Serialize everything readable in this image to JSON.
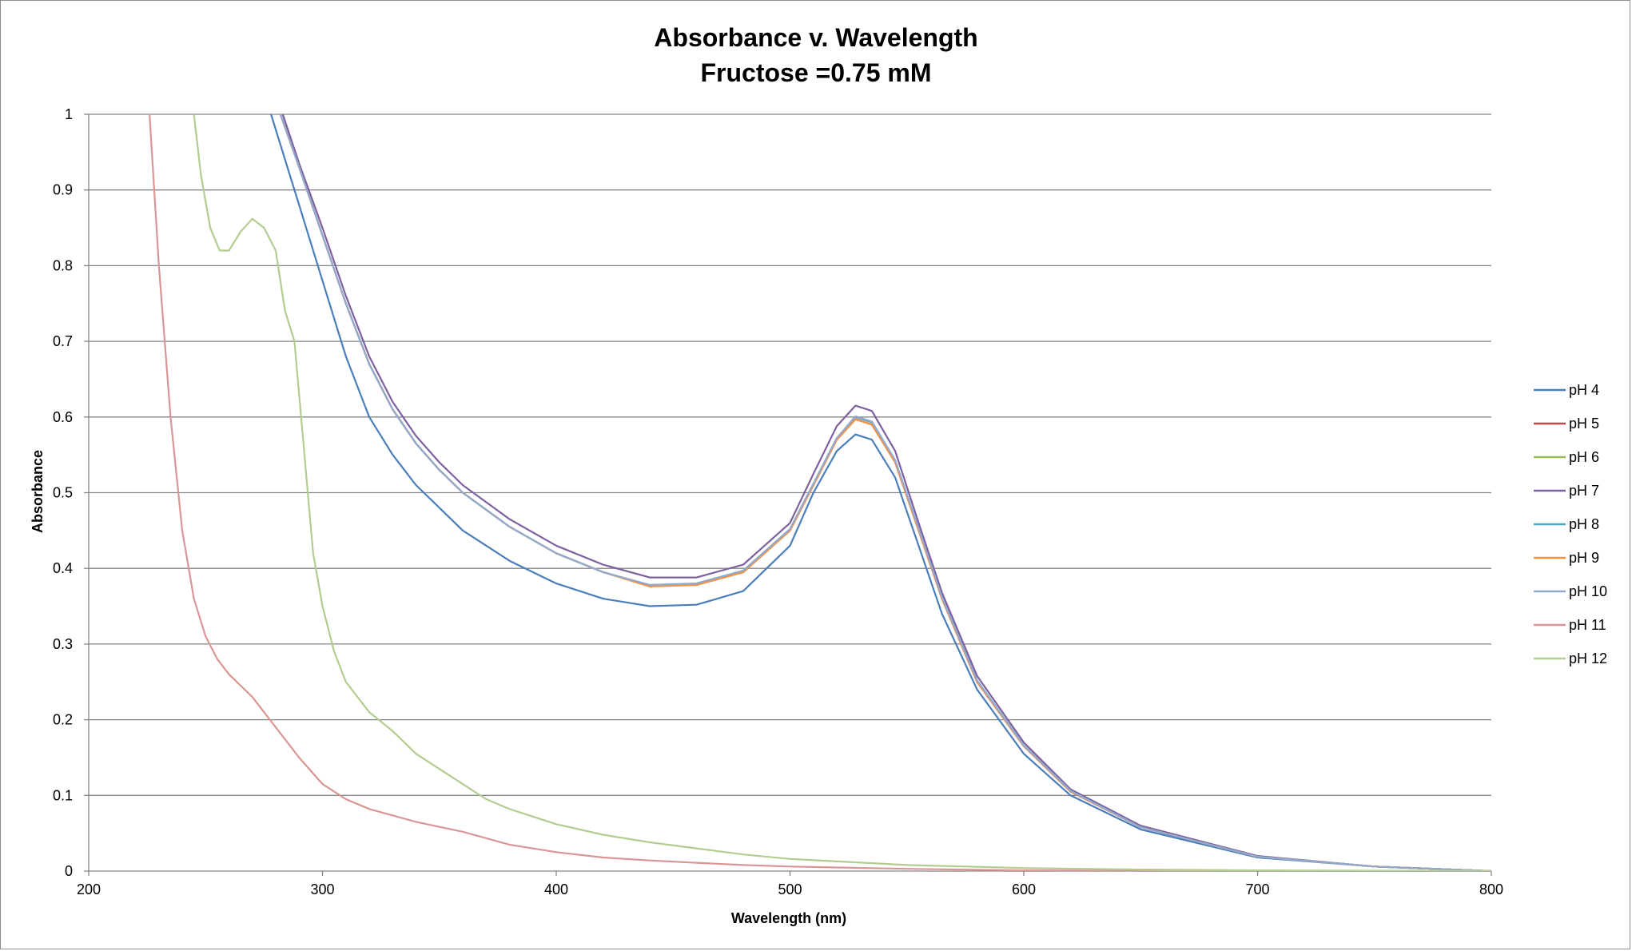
{
  "chart_data": {
    "type": "line",
    "title": "Absorbance v. Wavelength",
    "subtitle": "Fructose =0.75 mM",
    "xlabel": "Wavelength (nm)",
    "ylabel": "Absorbance",
    "xlim": [
      200,
      800
    ],
    "ylim": [
      0,
      1
    ],
    "xticks": [
      "200",
      "300",
      "400",
      "500",
      "600",
      "700",
      "800"
    ],
    "yticks": [
      "0",
      "0.1",
      "0.2",
      "0.3",
      "0.4",
      "0.5",
      "0.6",
      "0.7",
      "0.8",
      "0.9",
      "1"
    ],
    "grid": "horizontal",
    "legend_position": "right",
    "series": [
      {
        "name": "pH 4",
        "color": "#4a7ebb",
        "points": [
          [
            278,
            1.0
          ],
          [
            290,
            0.88
          ],
          [
            300,
            0.78
          ],
          [
            310,
            0.68
          ],
          [
            320,
            0.6
          ],
          [
            330,
            0.55
          ],
          [
            340,
            0.51
          ],
          [
            350,
            0.48
          ],
          [
            360,
            0.45
          ],
          [
            380,
            0.41
          ],
          [
            400,
            0.38
          ],
          [
            420,
            0.36
          ],
          [
            440,
            0.35
          ],
          [
            460,
            0.352
          ],
          [
            480,
            0.37
          ],
          [
            500,
            0.43
          ],
          [
            510,
            0.5
          ],
          [
            520,
            0.555
          ],
          [
            528,
            0.577
          ],
          [
            535,
            0.57
          ],
          [
            545,
            0.52
          ],
          [
            555,
            0.43
          ],
          [
            565,
            0.34
          ],
          [
            580,
            0.24
          ],
          [
            600,
            0.155
          ],
          [
            620,
            0.1
          ],
          [
            650,
            0.055
          ],
          [
            700,
            0.018
          ],
          [
            750,
            0.006
          ],
          [
            800,
            0.0
          ]
        ]
      },
      {
        "name": "pH 5",
        "color": "#be4b48",
        "points": [
          [
            282,
            1.0
          ],
          [
            290,
            0.93
          ],
          [
            300,
            0.84
          ],
          [
            310,
            0.75
          ],
          [
            320,
            0.67
          ],
          [
            330,
            0.61
          ],
          [
            340,
            0.565
          ],
          [
            350,
            0.53
          ],
          [
            360,
            0.5
          ],
          [
            380,
            0.455
          ],
          [
            400,
            0.42
          ],
          [
            420,
            0.395
          ],
          [
            440,
            0.378
          ],
          [
            460,
            0.378
          ],
          [
            480,
            0.395
          ],
          [
            500,
            0.45
          ],
          [
            510,
            0.51
          ],
          [
            520,
            0.57
          ],
          [
            528,
            0.597
          ],
          [
            535,
            0.59
          ],
          [
            545,
            0.54
          ],
          [
            555,
            0.45
          ],
          [
            565,
            0.36
          ],
          [
            580,
            0.25
          ],
          [
            600,
            0.165
          ],
          [
            620,
            0.105
          ],
          [
            650,
            0.058
          ],
          [
            700,
            0.019
          ],
          [
            750,
            0.006
          ],
          [
            800,
            0.0
          ]
        ]
      },
      {
        "name": "pH 6",
        "color": "#98b954",
        "points": [
          [
            282,
            1.0
          ],
          [
            290,
            0.93
          ],
          [
            300,
            0.84
          ],
          [
            310,
            0.75
          ],
          [
            320,
            0.67
          ],
          [
            330,
            0.61
          ],
          [
            340,
            0.565
          ],
          [
            350,
            0.53
          ],
          [
            360,
            0.5
          ],
          [
            380,
            0.455
          ],
          [
            400,
            0.42
          ],
          [
            420,
            0.395
          ],
          [
            440,
            0.378
          ],
          [
            460,
            0.38
          ],
          [
            480,
            0.397
          ],
          [
            500,
            0.452
          ],
          [
            510,
            0.512
          ],
          [
            520,
            0.572
          ],
          [
            528,
            0.6
          ],
          [
            535,
            0.593
          ],
          [
            545,
            0.542
          ],
          [
            555,
            0.452
          ],
          [
            565,
            0.362
          ],
          [
            580,
            0.252
          ],
          [
            600,
            0.166
          ],
          [
            620,
            0.106
          ],
          [
            650,
            0.058
          ],
          [
            700,
            0.019
          ],
          [
            750,
            0.006
          ],
          [
            800,
            0.0
          ]
        ]
      },
      {
        "name": "pH 7",
        "color": "#7d60a0",
        "points": [
          [
            283,
            1.0
          ],
          [
            290,
            0.935
          ],
          [
            300,
            0.85
          ],
          [
            310,
            0.76
          ],
          [
            320,
            0.68
          ],
          [
            330,
            0.62
          ],
          [
            340,
            0.575
          ],
          [
            350,
            0.54
          ],
          [
            360,
            0.51
          ],
          [
            380,
            0.465
          ],
          [
            400,
            0.43
          ],
          [
            420,
            0.405
          ],
          [
            440,
            0.388
          ],
          [
            460,
            0.388
          ],
          [
            480,
            0.405
          ],
          [
            500,
            0.46
          ],
          [
            510,
            0.525
          ],
          [
            520,
            0.588
          ],
          [
            528,
            0.615
          ],
          [
            535,
            0.608
          ],
          [
            545,
            0.555
          ],
          [
            555,
            0.46
          ],
          [
            565,
            0.368
          ],
          [
            580,
            0.258
          ],
          [
            600,
            0.17
          ],
          [
            620,
            0.108
          ],
          [
            650,
            0.06
          ],
          [
            700,
            0.02
          ],
          [
            750,
            0.006
          ],
          [
            800,
            0.0
          ]
        ]
      },
      {
        "name": "pH 8",
        "color": "#46aac4",
        "points": [
          [
            282,
            1.0
          ],
          [
            290,
            0.93
          ],
          [
            300,
            0.84
          ],
          [
            310,
            0.75
          ],
          [
            320,
            0.67
          ],
          [
            330,
            0.61
          ],
          [
            340,
            0.565
          ],
          [
            350,
            0.53
          ],
          [
            360,
            0.5
          ],
          [
            380,
            0.455
          ],
          [
            400,
            0.42
          ],
          [
            420,
            0.395
          ],
          [
            440,
            0.377
          ],
          [
            460,
            0.379
          ],
          [
            480,
            0.396
          ],
          [
            500,
            0.451
          ],
          [
            510,
            0.511
          ],
          [
            520,
            0.571
          ],
          [
            528,
            0.6
          ],
          [
            535,
            0.593
          ],
          [
            545,
            0.542
          ],
          [
            555,
            0.452
          ],
          [
            565,
            0.362
          ],
          [
            580,
            0.252
          ],
          [
            600,
            0.166
          ],
          [
            620,
            0.106
          ],
          [
            650,
            0.058
          ],
          [
            700,
            0.019
          ],
          [
            750,
            0.006
          ],
          [
            800,
            0.0
          ]
        ]
      },
      {
        "name": "pH 9",
        "color": "#f69240",
        "points": [
          [
            282,
            1.0
          ],
          [
            290,
            0.93
          ],
          [
            300,
            0.84
          ],
          [
            310,
            0.75
          ],
          [
            320,
            0.67
          ],
          [
            330,
            0.61
          ],
          [
            340,
            0.565
          ],
          [
            350,
            0.53
          ],
          [
            360,
            0.5
          ],
          [
            380,
            0.455
          ],
          [
            400,
            0.42
          ],
          [
            420,
            0.395
          ],
          [
            440,
            0.376
          ],
          [
            460,
            0.378
          ],
          [
            480,
            0.395
          ],
          [
            500,
            0.45
          ],
          [
            510,
            0.51
          ],
          [
            520,
            0.57
          ],
          [
            528,
            0.597
          ],
          [
            535,
            0.59
          ],
          [
            545,
            0.54
          ],
          [
            555,
            0.45
          ],
          [
            565,
            0.36
          ],
          [
            580,
            0.25
          ],
          [
            600,
            0.165
          ],
          [
            620,
            0.105
          ],
          [
            650,
            0.058
          ],
          [
            700,
            0.019
          ],
          [
            750,
            0.006
          ],
          [
            800,
            0.0
          ]
        ]
      },
      {
        "name": "pH 10",
        "color": "#92a9cf",
        "points": [
          [
            282,
            1.0
          ],
          [
            290,
            0.93
          ],
          [
            300,
            0.84
          ],
          [
            310,
            0.75
          ],
          [
            320,
            0.67
          ],
          [
            330,
            0.61
          ],
          [
            340,
            0.565
          ],
          [
            350,
            0.53
          ],
          [
            360,
            0.5
          ],
          [
            380,
            0.455
          ],
          [
            400,
            0.42
          ],
          [
            420,
            0.395
          ],
          [
            440,
            0.378
          ],
          [
            460,
            0.38
          ],
          [
            480,
            0.397
          ],
          [
            500,
            0.452
          ],
          [
            510,
            0.512
          ],
          [
            520,
            0.572
          ],
          [
            528,
            0.601
          ],
          [
            535,
            0.594
          ],
          [
            545,
            0.543
          ],
          [
            555,
            0.453
          ],
          [
            565,
            0.362
          ],
          [
            580,
            0.252
          ],
          [
            600,
            0.166
          ],
          [
            620,
            0.106
          ],
          [
            650,
            0.058
          ],
          [
            700,
            0.019
          ],
          [
            750,
            0.006
          ],
          [
            800,
            0.0
          ]
        ]
      },
      {
        "name": "pH 11",
        "color": "#d99694",
        "points": [
          [
            226,
            1.0
          ],
          [
            230,
            0.8
          ],
          [
            235,
            0.6
          ],
          [
            240,
            0.45
          ],
          [
            245,
            0.36
          ],
          [
            250,
            0.31
          ],
          [
            255,
            0.28
          ],
          [
            260,
            0.26
          ],
          [
            270,
            0.23
          ],
          [
            280,
            0.19
          ],
          [
            290,
            0.15
          ],
          [
            300,
            0.115
          ],
          [
            310,
            0.095
          ],
          [
            320,
            0.082
          ],
          [
            340,
            0.065
          ],
          [
            360,
            0.052
          ],
          [
            380,
            0.035
          ],
          [
            400,
            0.025
          ],
          [
            420,
            0.018
          ],
          [
            440,
            0.014
          ],
          [
            460,
            0.011
          ],
          [
            480,
            0.008
          ],
          [
            500,
            0.006
          ],
          [
            550,
            0.003
          ],
          [
            600,
            0.001
          ],
          [
            700,
            0.0
          ],
          [
            800,
            0.0
          ]
        ]
      },
      {
        "name": "pH 12",
        "color": "#b3cc8f",
        "points": [
          [
            245,
            1.0
          ],
          [
            248,
            0.92
          ],
          [
            252,
            0.85
          ],
          [
            256,
            0.82
          ],
          [
            260,
            0.82
          ],
          [
            265,
            0.845
          ],
          [
            270,
            0.862
          ],
          [
            275,
            0.85
          ],
          [
            280,
            0.82
          ],
          [
            284,
            0.74
          ],
          [
            288,
            0.7
          ],
          [
            292,
            0.56
          ],
          [
            296,
            0.42
          ],
          [
            300,
            0.35
          ],
          [
            305,
            0.29
          ],
          [
            310,
            0.25
          ],
          [
            320,
            0.21
          ],
          [
            330,
            0.185
          ],
          [
            340,
            0.155
          ],
          [
            350,
            0.135
          ],
          [
            360,
            0.115
          ],
          [
            370,
            0.095
          ],
          [
            380,
            0.082
          ],
          [
            400,
            0.062
          ],
          [
            420,
            0.048
          ],
          [
            440,
            0.038
          ],
          [
            460,
            0.03
          ],
          [
            480,
            0.022
          ],
          [
            500,
            0.016
          ],
          [
            550,
            0.008
          ],
          [
            600,
            0.004
          ],
          [
            650,
            0.002
          ],
          [
            700,
            0.001
          ],
          [
            800,
            0.0
          ]
        ]
      }
    ]
  }
}
